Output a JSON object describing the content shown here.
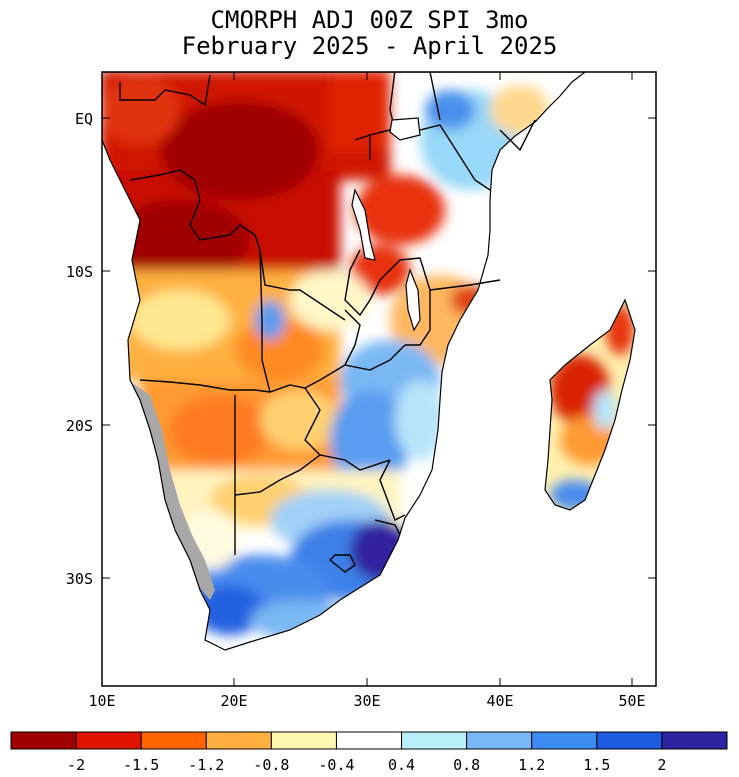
{
  "title": {
    "line1": "CMORPH ADJ 00Z SPI 3mo",
    "line2": "February 2025 - April 2025"
  },
  "map": {
    "region": "Southern Africa",
    "lat_labels": [
      "EQ",
      "10S",
      "20S",
      "30S"
    ],
    "lon_labels": [
      "10E",
      "20E",
      "30E",
      "40E",
      "50E"
    ]
  },
  "legend": {
    "labels": [
      "-2",
      "-1.5",
      "-1.2",
      "-0.8",
      "-0.4",
      "0.4",
      "0.8",
      "1.2",
      "1.5",
      "2"
    ],
    "colors": [
      "#a00000",
      "#e01400",
      "#ff6400",
      "#ffb040",
      "#fff8b0",
      "#ffffff",
      "#b8f0fa",
      "#78b8f8",
      "#3c8cf0",
      "#1c5ae0",
      "#2c24a0"
    ]
  },
  "colors": {
    "no_data": "#a8a8a8",
    "border": "#000000"
  }
}
